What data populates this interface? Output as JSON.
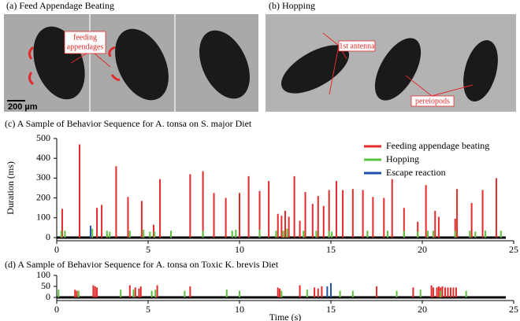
{
  "panels": {
    "a": {
      "title": "(a) Feed Appendage Beating",
      "annotations": [
        "feeding",
        "appendages"
      ],
      "scale_bar": "200 µm"
    },
    "b": {
      "title": "(b)  Hopping",
      "annotations": [
        "1st antenna",
        "pereiopods"
      ]
    }
  },
  "chart_data": [
    {
      "type": "spike",
      "title": "(c) A Sample of Behavior Sequence for A. tonsa on S. major Diet",
      "y_label": "Duration (ms)",
      "xlim": [
        0,
        25
      ],
      "xticks": [
        0,
        5,
        10,
        15,
        20,
        25
      ],
      "ylim": [
        0,
        500
      ],
      "yticks": [
        0,
        100,
        200,
        300,
        400,
        500
      ],
      "legend": "upper right",
      "series": [
        {
          "name": "Feeding appendage beating",
          "color": "#e32b2b",
          "x": [
            0.3,
            1.25,
            2.2,
            2.46,
            3.25,
            3.9,
            4.65,
            5.3,
            5.65,
            7.3,
            8.0,
            8.6,
            9.25,
            10.0,
            10.5,
            11.1,
            11.6,
            12.1,
            12.3,
            12.5,
            12.7,
            13.0,
            13.3,
            13.6,
            14.0,
            14.3,
            14.6,
            14.9,
            15.3,
            15.65,
            16.2,
            16.75,
            17.3,
            17.9,
            18.35,
            19.0,
            19.75,
            20.2,
            20.7,
            20.9,
            21.8,
            21.9,
            22.7,
            23.3,
            24.05
          ],
          "values": [
            145,
            470,
            150,
            165,
            360,
            205,
            185,
            65,
            295,
            320,
            335,
            225,
            200,
            225,
            310,
            235,
            285,
            120,
            110,
            135,
            105,
            310,
            85,
            230,
            170,
            210,
            160,
            240,
            285,
            240,
            245,
            240,
            205,
            200,
            295,
            150,
            80,
            265,
            135,
            105,
            95,
            245,
            175,
            240,
            300
          ]
        },
        {
          "name": "Hopping",
          "color": "#5cc23c",
          "x": [
            0.25,
            0.45,
            1.95,
            2.75,
            2.9,
            4.0,
            4.75,
            5.1,
            5.35,
            6.25,
            8.0,
            9.6,
            9.8,
            11.1,
            12.0,
            12.4,
            12.6,
            13.5,
            14.2,
            14.9,
            15.05,
            17.0,
            18.1,
            19.0,
            19.75,
            20.3,
            20.6,
            21.8,
            22.6,
            22.9,
            23.45,
            24.3
          ],
          "values": [
            35,
            35,
            45,
            35,
            30,
            35,
            40,
            30,
            30,
            35,
            35,
            35,
            40,
            40,
            35,
            35,
            45,
            35,
            35,
            35,
            30,
            35,
            35,
            35,
            30,
            35,
            35,
            35,
            35,
            30,
            35,
            35
          ]
        },
        {
          "name": "Escape reaction",
          "color": "#1f4fa8",
          "x": [
            1.85
          ],
          "values": [
            60
          ]
        }
      ]
    },
    {
      "type": "spike",
      "title": "(d) A Sample of Behavior Sequence for A. tonsa on Toxic K. brevis Diet",
      "x_label": "Time (s)",
      "xlim": [
        0,
        25
      ],
      "xticks": [
        0,
        5,
        10,
        15,
        20,
        25
      ],
      "ylim": [
        0,
        100
      ],
      "yticks": [
        0,
        50,
        100
      ],
      "series": [
        {
          "color": "#e32b2b",
          "x": [
            1.0,
            1.1,
            2.0,
            2.1,
            2.2,
            4.0,
            4.3,
            4.5,
            4.6,
            5.5,
            7.3,
            12.1,
            12.2,
            13.3,
            14.1,
            14.3,
            14.5,
            17.5,
            19.5,
            20.5,
            20.6,
            20.8,
            20.9,
            21.0,
            21.1,
            21.25,
            21.4,
            21.55,
            21.7,
            21.85
          ],
          "values": [
            35,
            30,
            55,
            50,
            45,
            55,
            45,
            40,
            50,
            55,
            50,
            45,
            40,
            55,
            45,
            40,
            50,
            50,
            45,
            55,
            45,
            45,
            50,
            45,
            50,
            45,
            45,
            45,
            45,
            45
          ]
        },
        {
          "color": "#5cc23c",
          "x": [
            0.1,
            1.2,
            3.5,
            4.2,
            5.2,
            5.4,
            7.0,
            9.3,
            10.0,
            12.3,
            13.7,
            15.5,
            16.2,
            18.6,
            19.9,
            21.0,
            22.4
          ],
          "values": [
            35,
            30,
            35,
            35,
            30,
            35,
            30,
            35,
            30,
            30,
            35,
            30,
            30,
            30,
            35,
            30,
            30
          ]
        },
        {
          "color": "#1f4fa8",
          "x": [
            14.8,
            15.0
          ],
          "values": [
            50,
            65
          ]
        }
      ]
    }
  ]
}
